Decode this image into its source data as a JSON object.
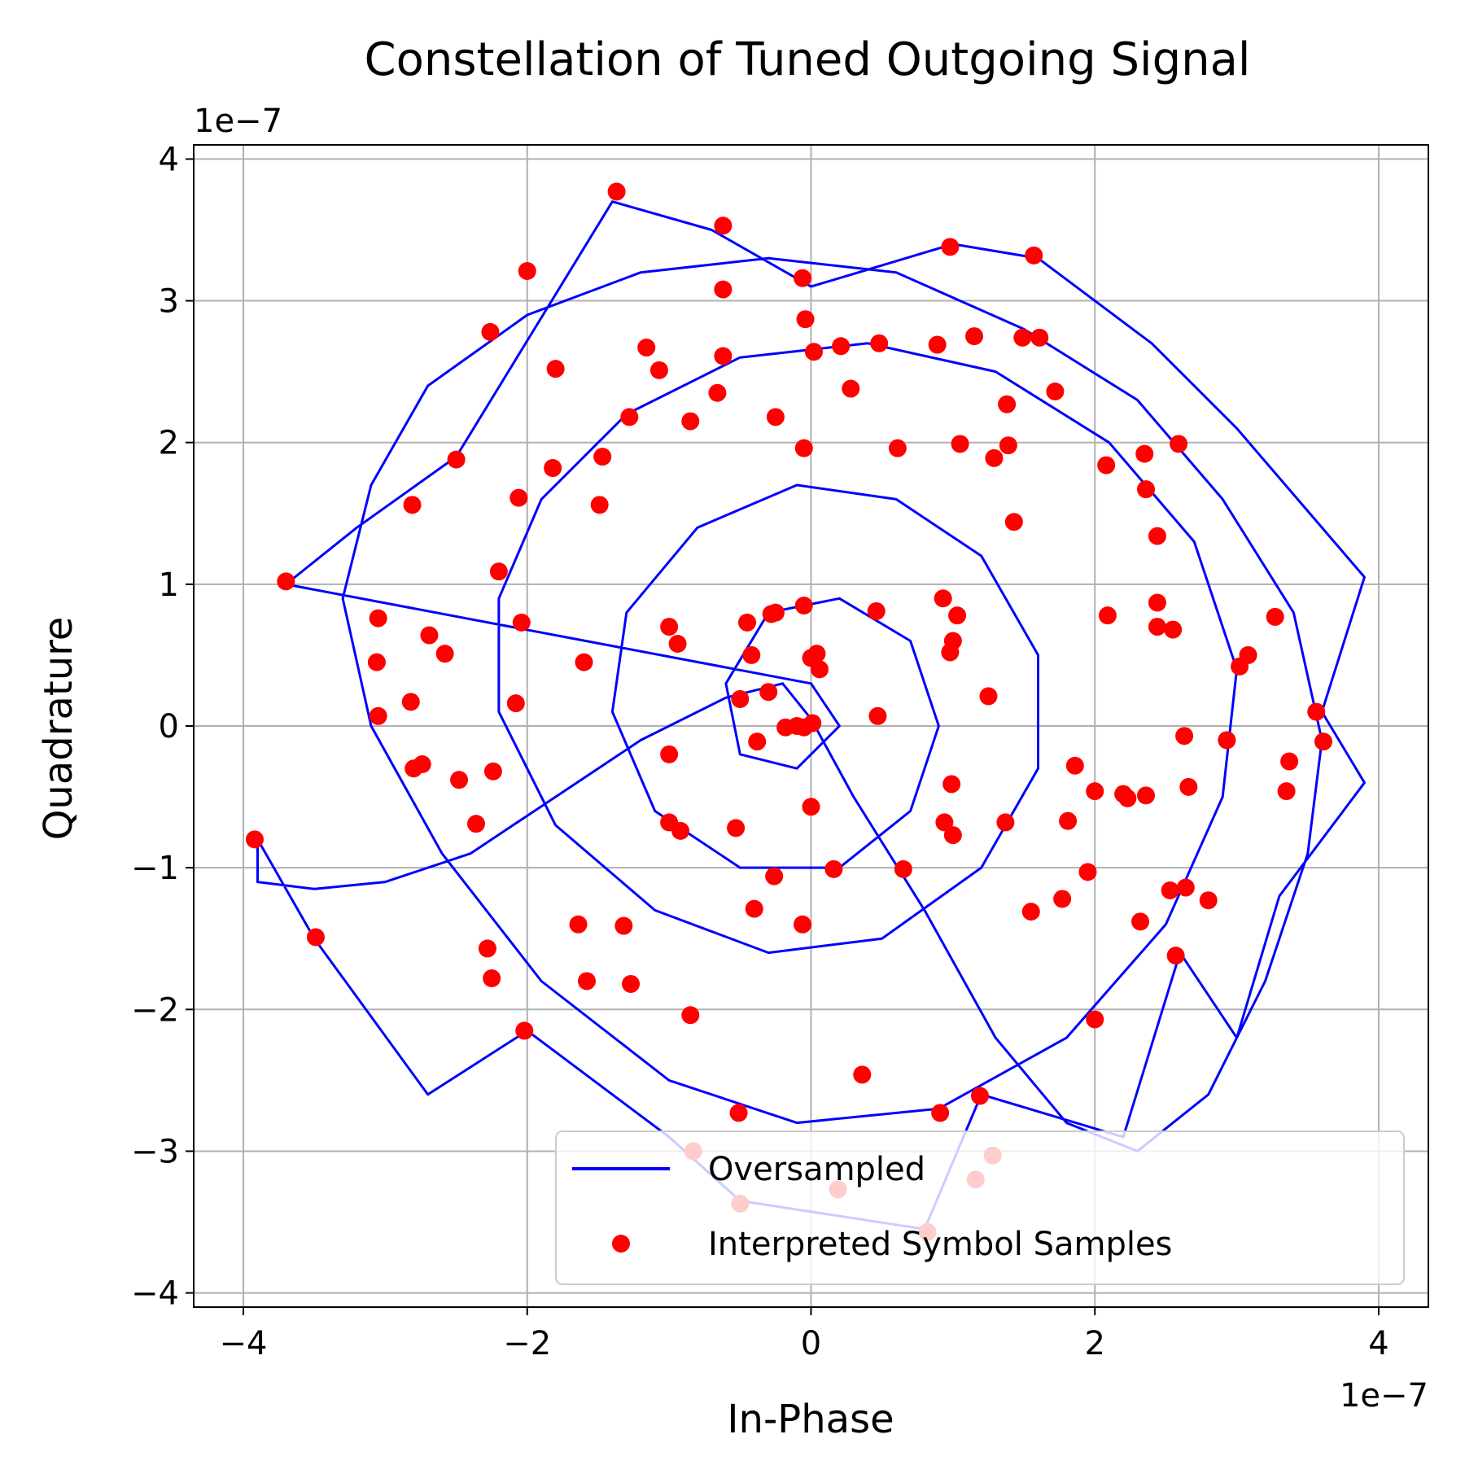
{
  "chart_data": {
    "type": "scatter",
    "title": "Constellation of Tuned Outgoing Signal",
    "xlabel": "In-Phase",
    "ylabel": "Quadrature",
    "x_scale_label": "1e−7",
    "y_scale_label": "1e−7",
    "xlim": [
      -4.35,
      4.35
    ],
    "ylim": [
      -4.1,
      4.1
    ],
    "x_ticks": [
      -4,
      -2,
      0,
      2,
      4
    ],
    "y_ticks": [
      -4,
      -3,
      -2,
      -1,
      0,
      1,
      2,
      3,
      4
    ],
    "x_tick_labels": [
      "−4",
      "−2",
      "0",
      "2",
      "4"
    ],
    "y_tick_labels": [
      "−4",
      "−3",
      "−2",
      "−1",
      "0",
      "1",
      "2",
      "3",
      "4"
    ],
    "grid": true,
    "legend_position": "lower-right",
    "colors": {
      "line": "#0000ff",
      "points": "#ff0000",
      "grid": "#b0b0b0"
    },
    "series": [
      {
        "name": "Oversampled",
        "kind": "line",
        "points": [
          [
            -3.9,
            -0.8
          ],
          [
            -3.9,
            -1.1
          ],
          [
            -3.5,
            -1.15
          ],
          [
            -3.0,
            -1.1
          ],
          [
            -2.4,
            -0.9
          ],
          [
            -1.8,
            -0.5
          ],
          [
            -1.2,
            -0.1
          ],
          [
            -0.6,
            0.2
          ],
          [
            -0.2,
            0.3
          ],
          [
            0.0,
            0.05
          ],
          [
            0.3,
            -0.5
          ],
          [
            0.8,
            -1.3
          ],
          [
            1.3,
            -2.2
          ],
          [
            1.8,
            -2.8
          ],
          [
            2.3,
            -3.0
          ],
          [
            2.8,
            -2.6
          ],
          [
            3.2,
            -1.8
          ],
          [
            3.5,
            -0.9
          ],
          [
            3.6,
            -0.1
          ],
          [
            3.4,
            0.8
          ],
          [
            2.9,
            1.6
          ],
          [
            2.3,
            2.3
          ],
          [
            1.5,
            2.8
          ],
          [
            0.6,
            3.2
          ],
          [
            -0.3,
            3.3
          ],
          [
            -1.2,
            3.2
          ],
          [
            -2.0,
            2.9
          ],
          [
            -2.7,
            2.4
          ],
          [
            -3.1,
            1.7
          ],
          [
            -3.3,
            0.9
          ],
          [
            -3.1,
            0.0
          ],
          [
            -2.6,
            -0.9
          ],
          [
            -1.9,
            -1.8
          ],
          [
            -1.0,
            -2.5
          ],
          [
            -0.1,
            -2.8
          ],
          [
            0.9,
            -2.7
          ],
          [
            1.8,
            -2.2
          ],
          [
            2.5,
            -1.4
          ],
          [
            2.9,
            -0.5
          ],
          [
            3.0,
            0.4
          ],
          [
            2.7,
            1.3
          ],
          [
            2.1,
            2.0
          ],
          [
            1.3,
            2.5
          ],
          [
            0.4,
            2.7
          ],
          [
            -0.5,
            2.6
          ],
          [
            -1.3,
            2.2
          ],
          [
            -1.9,
            1.6
          ],
          [
            -2.2,
            0.9
          ],
          [
            -2.2,
            0.1
          ],
          [
            -1.8,
            -0.7
          ],
          [
            -1.1,
            -1.3
          ],
          [
            -0.3,
            -1.6
          ],
          [
            0.5,
            -1.5
          ],
          [
            1.2,
            -1.0
          ],
          [
            1.6,
            -0.3
          ],
          [
            1.6,
            0.5
          ],
          [
            1.2,
            1.2
          ],
          [
            0.6,
            1.6
          ],
          [
            -0.1,
            1.7
          ],
          [
            -0.8,
            1.4
          ],
          [
            -1.3,
            0.8
          ],
          [
            -1.4,
            0.1
          ],
          [
            -1.1,
            -0.6
          ],
          [
            -0.5,
            -1.0
          ],
          [
            0.2,
            -1.0
          ],
          [
            0.7,
            -0.6
          ],
          [
            0.9,
            0.0
          ],
          [
            0.7,
            0.6
          ],
          [
            0.2,
            0.9
          ],
          [
            -0.3,
            0.8
          ],
          [
            -0.6,
            0.3
          ],
          [
            -0.5,
            -0.2
          ],
          [
            -0.1,
            -0.3
          ],
          [
            0.2,
            0.0
          ],
          [
            0.0,
            0.3
          ],
          [
            -3.7,
            1.0
          ],
          [
            -3.2,
            1.4
          ],
          [
            -2.5,
            1.9
          ],
          [
            -1.4,
            3.7
          ],
          [
            -0.7,
            3.5
          ],
          [
            0.0,
            3.1
          ],
          [
            1.0,
            3.4
          ],
          [
            1.6,
            3.3
          ],
          [
            2.4,
            2.7
          ],
          [
            3.0,
            2.1
          ],
          [
            3.9,
            1.05
          ],
          [
            3.6,
            0.1
          ],
          [
            3.9,
            -0.4
          ],
          [
            3.3,
            -1.2
          ],
          [
            3.0,
            -2.2
          ],
          [
            2.6,
            -1.6
          ],
          [
            2.2,
            -2.9
          ],
          [
            1.2,
            -2.6
          ],
          [
            0.8,
            -3.55
          ],
          [
            -0.5,
            -3.35
          ],
          [
            -1.0,
            -2.9
          ],
          [
            -2.0,
            -2.15
          ],
          [
            -2.7,
            -2.6
          ],
          [
            -3.5,
            -1.5
          ],
          [
            -3.9,
            -0.8
          ]
        ]
      },
      {
        "name": "Interpreted Symbol Samples",
        "kind": "scatter",
        "points": [
          [
            -1.37,
            3.77
          ],
          [
            -0.62,
            3.53
          ],
          [
            -2.0,
            3.21
          ],
          [
            -0.06,
            3.16
          ],
          [
            0.98,
            3.38
          ],
          [
            1.57,
            3.32
          ],
          [
            -0.62,
            3.08
          ],
          [
            -0.04,
            2.87
          ],
          [
            -2.26,
            2.78
          ],
          [
            -1.16,
            2.67
          ],
          [
            -0.62,
            2.61
          ],
          [
            0.02,
            2.64
          ],
          [
            0.21,
            2.68
          ],
          [
            0.48,
            2.7
          ],
          [
            0.89,
            2.69
          ],
          [
            1.15,
            2.75
          ],
          [
            1.49,
            2.74
          ],
          [
            1.61,
            2.74
          ],
          [
            -1.8,
            2.52
          ],
          [
            -1.07,
            2.51
          ],
          [
            -0.66,
            2.35
          ],
          [
            0.28,
            2.38
          ],
          [
            1.38,
            2.27
          ],
          [
            1.72,
            2.36
          ],
          [
            -1.28,
            2.18
          ],
          [
            -0.85,
            2.15
          ],
          [
            -0.25,
            2.18
          ],
          [
            -0.05,
            1.96
          ],
          [
            0.61,
            1.96
          ],
          [
            1.05,
            1.99
          ],
          [
            1.29,
            1.89
          ],
          [
            1.39,
            1.98
          ],
          [
            2.08,
            1.84
          ],
          [
            2.35,
            1.92
          ],
          [
            2.59,
            1.99
          ],
          [
            -2.5,
            1.88
          ],
          [
            -1.47,
            1.9
          ],
          [
            -1.82,
            1.82
          ],
          [
            -2.06,
            1.61
          ],
          [
            -1.49,
            1.56
          ],
          [
            -2.81,
            1.56
          ],
          [
            2.36,
            1.67
          ],
          [
            1.43,
            1.44
          ],
          [
            2.44,
            1.34
          ],
          [
            -3.7,
            1.02
          ],
          [
            -2.2,
            1.09
          ],
          [
            -3.05,
            0.76
          ],
          [
            -2.69,
            0.64
          ],
          [
            -2.04,
            0.73
          ],
          [
            2.44,
            0.87
          ],
          [
            0.93,
            0.9
          ],
          [
            1.03,
            0.78
          ],
          [
            0.46,
            0.81
          ],
          [
            -0.28,
            0.79
          ],
          [
            -0.25,
            0.8
          ],
          [
            -0.05,
            0.85
          ],
          [
            2.09,
            0.78
          ],
          [
            2.44,
            0.7
          ],
          [
            2.55,
            0.68
          ],
          [
            3.27,
            0.77
          ],
          [
            -1.0,
            0.7
          ],
          [
            -0.94,
            0.58
          ],
          [
            -0.45,
            0.73
          ],
          [
            -3.06,
            0.45
          ],
          [
            -2.58,
            0.51
          ],
          [
            -1.6,
            0.45
          ],
          [
            -0.42,
            0.5
          ],
          [
            0.0,
            0.48
          ],
          [
            0.04,
            0.51
          ],
          [
            0.06,
            0.4
          ],
          [
            0.98,
            0.52
          ],
          [
            1.0,
            0.6
          ],
          [
            3.02,
            0.42
          ],
          [
            3.08,
            0.5
          ],
          [
            -0.5,
            0.19
          ],
          [
            -0.3,
            0.24
          ],
          [
            1.25,
            0.21
          ],
          [
            -3.05,
            0.07
          ],
          [
            -2.82,
            0.17
          ],
          [
            -2.08,
            0.16
          ],
          [
            -0.18,
            -0.01
          ],
          [
            -0.1,
            0.0
          ],
          [
            -0.05,
            -0.01
          ],
          [
            0.01,
            0.02
          ],
          [
            0.47,
            0.07
          ],
          [
            3.56,
            0.1
          ],
          [
            -2.8,
            -0.3
          ],
          [
            -2.74,
            -0.27
          ],
          [
            -2.48,
            -0.38
          ],
          [
            -2.24,
            -0.32
          ],
          [
            -1.0,
            -0.2
          ],
          [
            -0.38,
            -0.11
          ],
          [
            1.86,
            -0.28
          ],
          [
            2.63,
            -0.07
          ],
          [
            2.93,
            -0.1
          ],
          [
            3.61,
            -0.11
          ],
          [
            3.37,
            -0.25
          ],
          [
            -0.0,
            -0.57
          ],
          [
            0.99,
            -0.41
          ],
          [
            2.0,
            -0.46
          ],
          [
            2.2,
            -0.48
          ],
          [
            2.23,
            -0.51
          ],
          [
            2.36,
            -0.49
          ],
          [
            2.66,
            -0.43
          ],
          [
            3.35,
            -0.46
          ],
          [
            -2.36,
            -0.69
          ],
          [
            -1.0,
            -0.68
          ],
          [
            -0.92,
            -0.74
          ],
          [
            -0.53,
            -0.72
          ],
          [
            0.94,
            -0.68
          ],
          [
            1.0,
            -0.77
          ],
          [
            1.37,
            -0.68
          ],
          [
            1.81,
            -0.67
          ],
          [
            -0.26,
            -1.06
          ],
          [
            0.16,
            -1.01
          ],
          [
            0.65,
            -1.01
          ],
          [
            1.95,
            -1.03
          ],
          [
            -0.4,
            -1.29
          ],
          [
            -0.06,
            -1.4
          ],
          [
            1.77,
            -1.22
          ],
          [
            2.53,
            -1.16
          ],
          [
            2.64,
            -1.14
          ],
          [
            2.8,
            -1.23
          ],
          [
            1.55,
            -1.31
          ],
          [
            2.32,
            -1.38
          ],
          [
            -3.49,
            -1.49
          ],
          [
            -1.64,
            -1.4
          ],
          [
            -1.32,
            -1.41
          ],
          [
            2.57,
            -1.62
          ],
          [
            -2.28,
            -1.57
          ],
          [
            -2.25,
            -1.78
          ],
          [
            -1.58,
            -1.8
          ],
          [
            -1.27,
            -1.82
          ],
          [
            -0.85,
            -2.04
          ],
          [
            -2.02,
            -2.15
          ],
          [
            2.0,
            -2.07
          ],
          [
            0.36,
            -2.46
          ],
          [
            1.19,
            -2.61
          ],
          [
            -0.51,
            -2.73
          ],
          [
            0.91,
            -2.73
          ],
          [
            -0.83,
            -3.0
          ],
          [
            1.28,
            -3.03
          ],
          [
            0.19,
            -3.27
          ],
          [
            1.16,
            -3.2
          ],
          [
            -0.5,
            -3.37
          ],
          [
            0.82,
            -3.57
          ],
          [
            -3.92,
            -0.8
          ]
        ]
      }
    ]
  }
}
